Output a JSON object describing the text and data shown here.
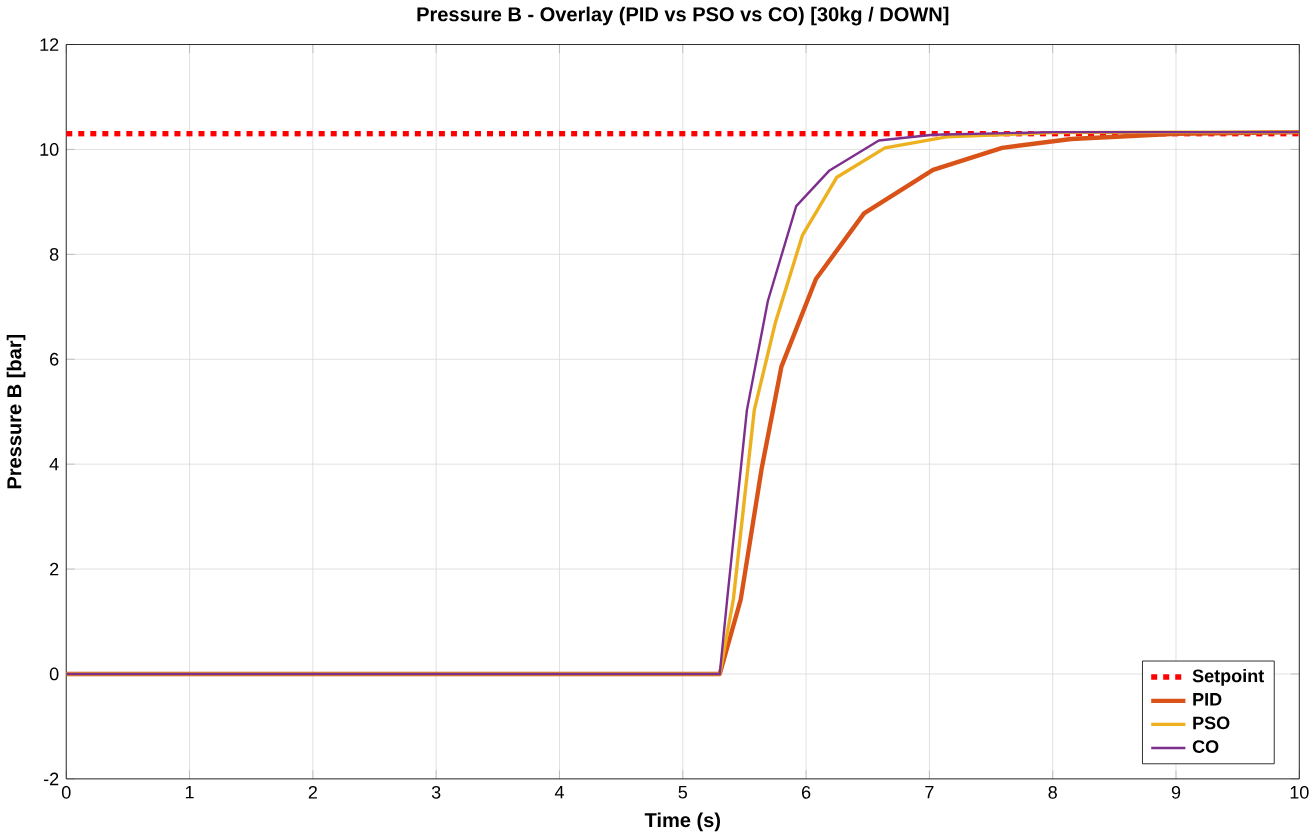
{
  "chart_data": {
    "type": "line",
    "title": "Pressure B - Overlay (PID vs PSO vs CO) [30kg / DOWN]",
    "xlabel": "Time (s)",
    "ylabel": "Pressure B [bar]",
    "xlim": [
      0,
      10
    ],
    "ylim": [
      -2,
      12
    ],
    "xticks": [
      0,
      1,
      2,
      3,
      4,
      5,
      6,
      7,
      8,
      9,
      10
    ],
    "yticks": [
      -2,
      0,
      2,
      4,
      6,
      8,
      10,
      12
    ],
    "grid": true,
    "legend": "bottom right",
    "marker": "none",
    "series": [
      {
        "name": "Setpoint",
        "color": "#ff0000",
        "line_style": "dashed",
        "x": [
          0,
          10
        ],
        "values": [
          10.3,
          10.3
        ]
      },
      {
        "name": "PID",
        "color": "#d95319",
        "line_style": "solid",
        "x": [
          0,
          5.3,
          5.47,
          5.64,
          5.8,
          6.08,
          6.47,
          7.03,
          7.59,
          8.15,
          9,
          10
        ],
        "values": [
          0,
          0,
          1.42,
          3.92,
          5.86,
          7.53,
          8.78,
          9.61,
          10.03,
          10.2,
          10.3,
          10.33
        ]
      },
      {
        "name": "PSO",
        "color": "#edb120",
        "line_style": "solid",
        "x": [
          0,
          5.3,
          5.41,
          5.58,
          5.75,
          5.97,
          6.25,
          6.64,
          7.14,
          8,
          9,
          10
        ],
        "values": [
          0,
          0,
          1.42,
          5.03,
          6.69,
          8.36,
          9.47,
          10.03,
          10.24,
          10.32,
          10.33,
          10.33
        ]
      },
      {
        "name": "CO",
        "color": "#7e2f8e",
        "line_style": "solid",
        "x": [
          0,
          5.3,
          5.36,
          5.52,
          5.69,
          5.92,
          6.19,
          6.59,
          7.03,
          8,
          9,
          10
        ],
        "values": [
          0,
          0,
          1.42,
          5.03,
          7.11,
          8.92,
          9.6,
          10.17,
          10.28,
          10.33,
          10.33,
          10.33
        ]
      }
    ]
  }
}
